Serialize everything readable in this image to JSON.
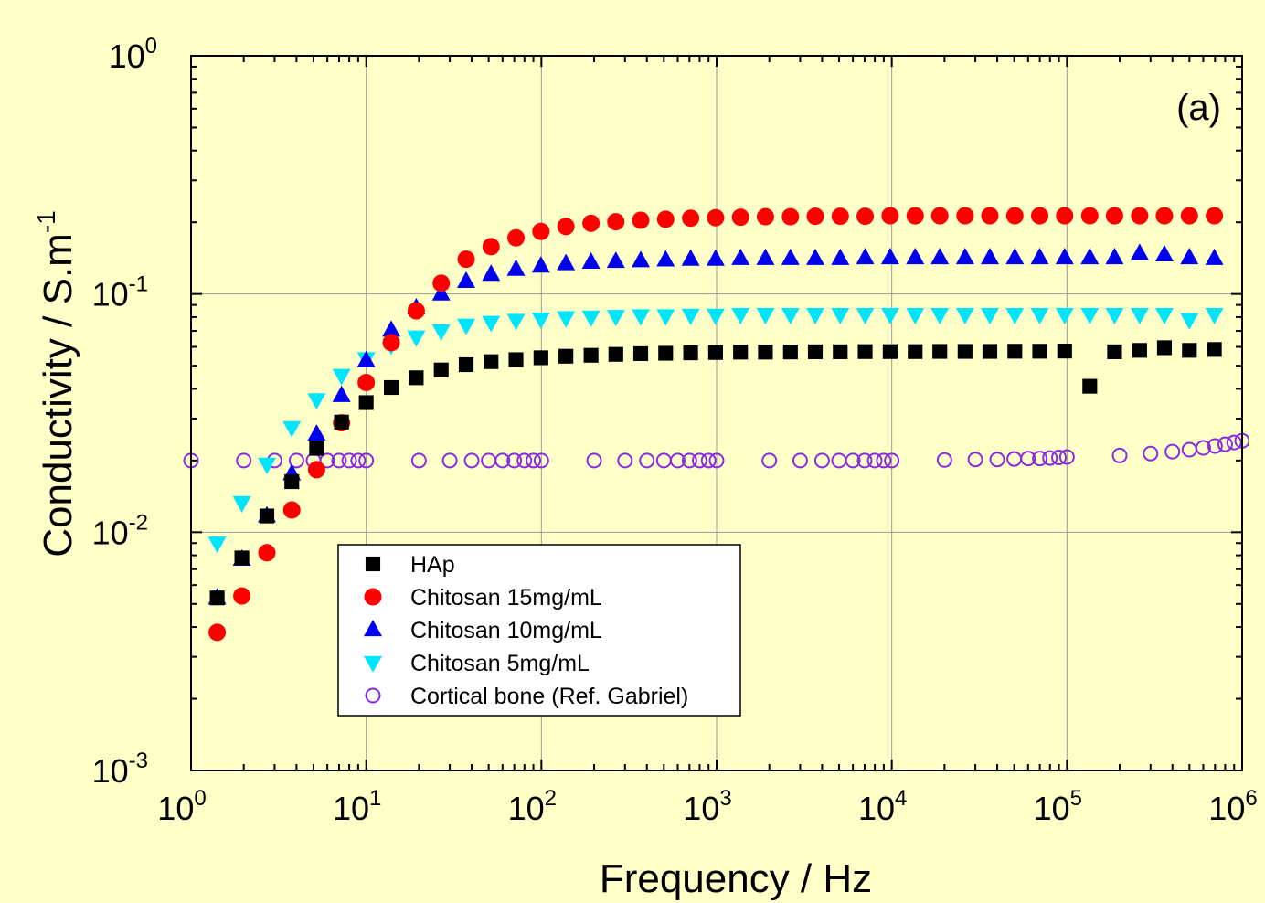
{
  "chart_data": {
    "type": "scatter",
    "panel_label": "(a)",
    "xlabel": "Frequency / Hz",
    "ylabel": "Conductivity / S.m",
    "ylabel_sup": "-1",
    "x_scale": "log",
    "y_scale": "log",
    "xlim": [
      1,
      1000000
    ],
    "ylim": [
      0.001,
      1
    ],
    "grid": true,
    "legend_position": "lower-left",
    "x_ticks": [
      {
        "base": "10",
        "exp": "0"
      },
      {
        "base": "10",
        "exp": "1"
      },
      {
        "base": "10",
        "exp": "2"
      },
      {
        "base": "10",
        "exp": "3"
      },
      {
        "base": "10",
        "exp": "4"
      },
      {
        "base": "10",
        "exp": "5"
      },
      {
        "base": "10",
        "exp": "6"
      }
    ],
    "y_ticks": [
      {
        "base": "10",
        "exp": "0"
      },
      {
        "base": "10",
        "exp": "-1"
      },
      {
        "base": "10",
        "exp": "-2"
      },
      {
        "base": "10",
        "exp": "-3"
      }
    ],
    "x": [
      1.41,
      1.95,
      2.71,
      3.76,
      5.21,
      7.23,
      10,
      13.9,
      19.3,
      26.8,
      37.2,
      51.6,
      71.6,
      99.4,
      138,
      192,
      266,
      369,
      512,
      711,
      987,
      1370,
      1900,
      2640,
      3660,
      5080,
      7050,
      9790,
      13600,
      18800,
      26200,
      36300,
      50400,
      69900,
      97000,
      135000,
      187000,
      260000,
      360000,
      500000,
      694000
    ],
    "series": [
      {
        "name": "HAp",
        "marker": "square",
        "color": "#000000",
        "values": [
          0.0053,
          0.0078,
          0.0117,
          0.0163,
          0.0225,
          0.029,
          0.035,
          0.0405,
          0.0445,
          0.048,
          0.0505,
          0.052,
          0.053,
          0.054,
          0.0548,
          0.0553,
          0.0558,
          0.0562,
          0.0564,
          0.0566,
          0.0568,
          0.057,
          0.057,
          0.0571,
          0.0572,
          0.0572,
          0.0573,
          0.0573,
          0.0573,
          0.0574,
          0.0574,
          0.0574,
          0.0575,
          0.0575,
          0.0576,
          0.041,
          0.0572,
          0.058,
          0.0595,
          0.058,
          0.0585
        ]
      },
      {
        "name": "Chitosan 15mg/mL",
        "marker": "circle",
        "color": "#ff0000",
        "values": [
          0.0038,
          0.0054,
          0.0082,
          0.0124,
          0.0183,
          0.0288,
          0.0425,
          0.0625,
          0.085,
          0.111,
          0.14,
          0.158,
          0.172,
          0.183,
          0.192,
          0.198,
          0.201,
          0.204,
          0.206,
          0.208,
          0.209,
          0.21,
          0.211,
          0.211,
          0.212,
          0.212,
          0.212,
          0.213,
          0.213,
          0.213,
          0.213,
          0.213,
          0.213,
          0.213,
          0.213,
          0.213,
          0.213,
          0.213,
          0.213,
          0.213,
          0.213
        ]
      },
      {
        "name": "Chitosan 10mg/mL",
        "marker": "triangle-up",
        "color": "#0000ee",
        "values": [
          0.0053,
          0.0077,
          0.0117,
          0.0176,
          0.0258,
          0.0375,
          0.0525,
          0.0705,
          0.0875,
          0.1,
          0.113,
          0.121,
          0.127,
          0.131,
          0.134,
          0.136,
          0.137,
          0.138,
          0.139,
          0.14,
          0.14,
          0.141,
          0.141,
          0.141,
          0.141,
          0.141,
          0.142,
          0.142,
          0.142,
          0.142,
          0.142,
          0.142,
          0.142,
          0.142,
          0.142,
          0.142,
          0.142,
          0.148,
          0.146,
          0.142,
          0.141
        ]
      },
      {
        "name": "Chitosan 5mg/mL",
        "marker": "triangle-down",
        "color": "#00e5ff",
        "values": [
          0.009,
          0.0133,
          0.0193,
          0.0275,
          0.036,
          0.0455,
          0.0535,
          0.061,
          0.066,
          0.07,
          0.074,
          0.076,
          0.0775,
          0.0785,
          0.0795,
          0.08,
          0.0805,
          0.081,
          0.081,
          0.0815,
          0.0815,
          0.082,
          0.082,
          0.082,
          0.082,
          0.082,
          0.082,
          0.082,
          0.082,
          0.082,
          0.082,
          0.082,
          0.082,
          0.082,
          0.082,
          0.082,
          0.082,
          0.082,
          0.082,
          0.078,
          0.082
        ]
      },
      {
        "name": "Cortical bone (Ref. Gabriel)",
        "marker": "open-circle",
        "color": "#8a2be2",
        "x": [
          1,
          2,
          3,
          4,
          5,
          6,
          7,
          8,
          9,
          10,
          20,
          30,
          40,
          50,
          60,
          70,
          80,
          90,
          100,
          200,
          300,
          400,
          500,
          600,
          700,
          800,
          900,
          1000,
          2000,
          3000,
          4000,
          5000,
          6000,
          7000,
          8000,
          9000,
          10000,
          20000,
          30000,
          40000,
          50000,
          60000,
          70000,
          80000,
          90000,
          100000,
          200000,
          300000,
          400000,
          500000,
          600000,
          700000,
          800000,
          900000,
          1000000
        ],
        "values": [
          0.02,
          0.02,
          0.02,
          0.02,
          0.02,
          0.02,
          0.02,
          0.02,
          0.02,
          0.02,
          0.02,
          0.02,
          0.02,
          0.02,
          0.02,
          0.02,
          0.02,
          0.02,
          0.02,
          0.02,
          0.02,
          0.02,
          0.02,
          0.02,
          0.02,
          0.02,
          0.02,
          0.02,
          0.02,
          0.02,
          0.02,
          0.02,
          0.02,
          0.02,
          0.02,
          0.02,
          0.02,
          0.0201,
          0.0202,
          0.0202,
          0.0203,
          0.0204,
          0.0204,
          0.0205,
          0.0206,
          0.0207,
          0.021,
          0.0214,
          0.0218,
          0.0222,
          0.0226,
          0.023,
          0.0234,
          0.0238,
          0.0242
        ]
      }
    ]
  }
}
